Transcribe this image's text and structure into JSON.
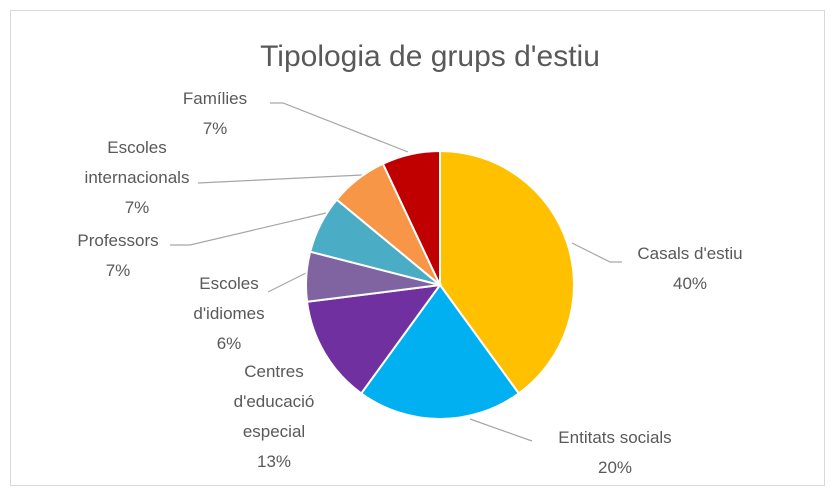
{
  "chart_data": {
    "type": "pie",
    "title": "Tipologia de grups d'estiu",
    "categories": [
      "Casals d'estiu",
      "Entitats socials",
      "Centres d'educació especial",
      "Escoles d'idiomes",
      "Professors",
      "Escoles internacionals",
      "Famílies"
    ],
    "values": [
      40,
      20,
      13,
      6,
      7,
      7,
      7
    ],
    "value_labels": [
      "40%",
      "20%",
      "13%",
      "6%",
      "7%",
      "7%",
      "7%"
    ],
    "colors": [
      "#FFC000",
      "#00B0F0",
      "#7030A0",
      "#8064A2",
      "#4BACC6",
      "#F79646",
      "#C00000"
    ]
  }
}
